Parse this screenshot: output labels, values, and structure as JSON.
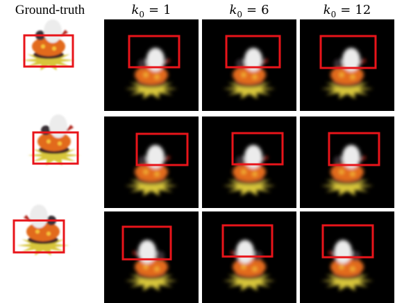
{
  "columns": [
    {
      "label": "Ground-truth"
    },
    {
      "symbol": "k",
      "subscript": "0",
      "relation": "=",
      "value": 1
    },
    {
      "symbol": "k",
      "subscript": "0",
      "relation": "=",
      "value": 6
    },
    {
      "symbol": "k",
      "subscript": "0",
      "relation": "=",
      "value": 12
    }
  ]
}
